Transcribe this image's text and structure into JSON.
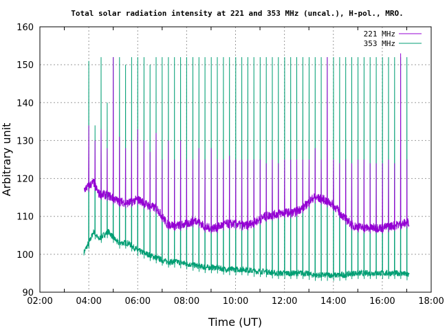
{
  "chart_data": {
    "type": "line",
    "title": "Total solar radiation intensity at 221 and 353 MHz (uncal.), H-pol., MRO.",
    "xlabel": "Time (UT)",
    "ylabel": "Arbitrary unit",
    "xlim": [
      2,
      18
    ],
    "ylim": [
      90,
      160
    ],
    "xticks": [
      "02:00",
      "04:00",
      "06:00",
      "08:00",
      "10:00",
      "12:00",
      "14:00",
      "16:00",
      "18:00"
    ],
    "yticks": [
      "90",
      "100",
      "110",
      "120",
      "130",
      "140",
      "150",
      "160"
    ],
    "grid": true,
    "legend_position": "top-right",
    "colors": {
      "s221": "#9400d3",
      "s353": "#009e73"
    },
    "series": [
      {
        "name": "221 MHz",
        "x": [
          3.8,
          4.0,
          4.2,
          4.4,
          4.8,
          5.2,
          5.6,
          6.0,
          6.4,
          6.8,
          7.2,
          7.6,
          8.0,
          8.4,
          8.8,
          9.2,
          9.6,
          10.0,
          10.4,
          10.8,
          11.2,
          11.6,
          12.0,
          12.4,
          12.8,
          13.2,
          13.6,
          14.0,
          14.4,
          14.8,
          15.2,
          15.6,
          16.0,
          16.4,
          16.8,
          17.1
        ],
        "y": [
          117,
          118,
          119,
          116,
          115.5,
          114,
          113.5,
          114.5,
          113,
          112,
          108,
          107.5,
          108,
          109,
          107,
          107,
          108,
          108,
          107.5,
          108.5,
          110,
          110.5,
          111,
          111,
          112.5,
          115,
          114.5,
          113,
          110,
          107.5,
          107,
          107,
          107,
          107.5,
          108,
          108.5
        ],
        "spike_peaks": [
          134,
          130,
          133,
          128,
          152,
          131,
          128,
          130,
          133,
          130,
          127,
          132,
          125,
          130,
          125,
          130,
          125,
          125,
          128,
          125,
          128,
          125,
          125,
          126,
          125,
          125,
          125,
          125,
          125,
          124,
          125,
          124,
          125,
          125,
          125,
          125,
          125,
          128,
          125,
          152,
          125,
          124,
          125,
          124,
          125,
          125,
          124,
          124,
          124,
          125,
          124,
          153,
          125
        ]
      },
      {
        "name": "353 MHz",
        "x": [
          3.8,
          4.0,
          4.2,
          4.4,
          4.8,
          5.2,
          5.6,
          6.0,
          6.4,
          6.8,
          7.2,
          7.6,
          8.0,
          8.4,
          8.8,
          9.2,
          9.6,
          10.0,
          10.4,
          10.8,
          11.2,
          11.6,
          12.0,
          12.4,
          12.8,
          13.2,
          13.6,
          14.0,
          14.4,
          14.8,
          15.2,
          15.6,
          16.0,
          16.4,
          16.8,
          17.1
        ],
        "y": [
          100.5,
          103,
          106,
          104,
          106,
          103,
          103,
          101,
          100,
          99,
          98,
          98,
          97.5,
          97,
          96.5,
          96.5,
          96,
          96,
          96,
          95.5,
          95.5,
          95,
          95,
          95,
          95,
          94.5,
          94.5,
          94.5,
          94.5,
          95,
          95,
          95,
          95,
          95,
          95,
          94.5
        ],
        "spike_peaks": [
          151,
          134,
          152,
          140,
          152,
          152,
          150,
          152,
          152,
          152,
          150,
          152,
          152,
          152,
          152,
          152,
          152,
          152,
          152,
          152,
          152,
          152,
          152,
          152,
          152,
          152,
          152,
          152,
          152,
          152,
          152,
          152,
          152,
          152,
          152,
          152,
          152,
          152,
          152,
          152,
          152,
          152,
          152,
          152,
          152,
          152,
          152,
          152,
          152,
          152,
          152,
          152,
          152
        ]
      }
    ],
    "spike_times": [
      4.0,
      4.25,
      4.5,
      4.75,
      5.0,
      5.25,
      5.5,
      5.75,
      6.0,
      6.25,
      6.5,
      6.75,
      7.0,
      7.25,
      7.5,
      7.75,
      8.0,
      8.25,
      8.5,
      8.75,
      9.0,
      9.25,
      9.5,
      9.75,
      10.0,
      10.25,
      10.5,
      10.75,
      11.0,
      11.25,
      11.5,
      11.75,
      12.0,
      12.25,
      12.5,
      12.75,
      13.0,
      13.25,
      13.5,
      13.75,
      14.0,
      14.25,
      14.5,
      14.75,
      15.0,
      15.25,
      15.5,
      15.75,
      16.0,
      16.25,
      16.5,
      16.75,
      17.0
    ]
  }
}
